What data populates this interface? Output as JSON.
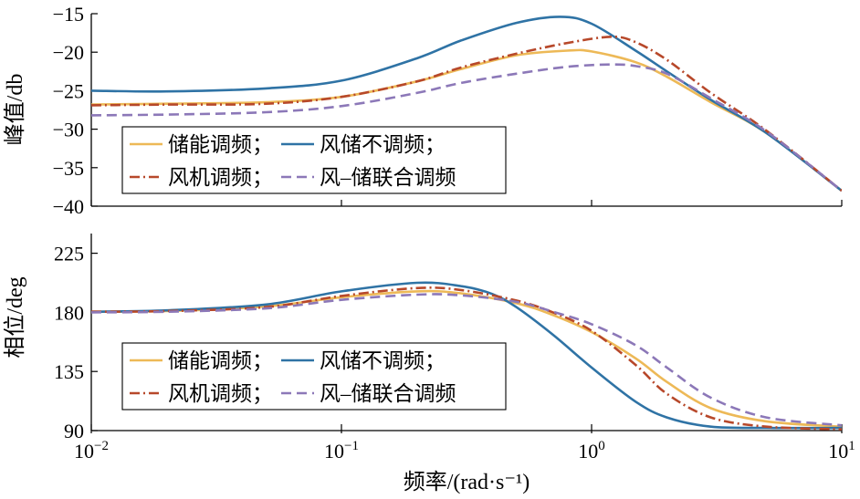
{
  "chart_data": [
    {
      "type": "line",
      "ylabel": "峰值/db",
      "xscale": "log",
      "xlim": [
        0.01,
        10
      ],
      "ylim": [
        -40,
        -15
      ],
      "yticks": [
        "−15",
        "−20",
        "−25",
        "−30",
        "−35",
        "−40"
      ],
      "yticks_values": [
        -15,
        -20,
        -25,
        -30,
        -35,
        -40
      ],
      "grid": false,
      "legend": {
        "placement": "left",
        "rows": [
          [
            "储能调频；",
            "风储不调频；"
          ],
          [
            "风机调频；",
            "风–储联合调频"
          ]
        ]
      },
      "series": [
        {
          "name": "储能调频",
          "color": "#EDB957",
          "style": "solid",
          "x": [
            0.01,
            0.02,
            0.05,
            0.1,
            0.2,
            0.3,
            0.5,
            0.8,
            1.0,
            1.5,
            2,
            3,
            5,
            10
          ],
          "y": [
            -26.8,
            -26.7,
            -26.5,
            -25.8,
            -23.8,
            -22.2,
            -20.4,
            -19.8,
            -19.9,
            -21.3,
            -23.2,
            -26.5,
            -30.5,
            -38.0
          ]
        },
        {
          "name": "风储不调频",
          "color": "#2F73A5",
          "style": "solid",
          "x": [
            0.01,
            0.02,
            0.05,
            0.1,
            0.2,
            0.3,
            0.5,
            0.75,
            1.0,
            1.5,
            2,
            3,
            5,
            10
          ],
          "y": [
            -25.0,
            -25.1,
            -24.7,
            -23.7,
            -20.8,
            -18.5,
            -16.2,
            -15.4,
            -16.3,
            -19.8,
            -22.5,
            -26.2,
            -30.5,
            -38.0
          ]
        },
        {
          "name": "风机调频",
          "color": "#B7482A",
          "style": "dashdot",
          "x": [
            0.01,
            0.02,
            0.05,
            0.1,
            0.2,
            0.3,
            0.5,
            0.8,
            1.2,
            1.5,
            2,
            3,
            5,
            10
          ],
          "y": [
            -26.9,
            -26.8,
            -26.7,
            -25.8,
            -23.8,
            -22.0,
            -20.2,
            -18.8,
            -18.0,
            -18.7,
            -21.0,
            -25.3,
            -30.2,
            -38.0
          ]
        },
        {
          "name": "风–储联合调频",
          "color": "#8C78B8",
          "style": "dashed",
          "x": [
            0.01,
            0.02,
            0.05,
            0.1,
            0.2,
            0.3,
            0.5,
            0.8,
            1.2,
            1.5,
            2,
            3,
            5,
            10
          ],
          "y": [
            -28.2,
            -28.1,
            -27.8,
            -27.0,
            -25.3,
            -24.0,
            -22.8,
            -21.9,
            -21.6,
            -21.8,
            -22.8,
            -26.0,
            -30.3,
            -38.0
          ]
        }
      ]
    },
    {
      "type": "line",
      "ylabel": "相位/deg",
      "xlabel": "频率/(rad·s⁻¹)",
      "xscale": "log",
      "xlim": [
        0.01,
        10
      ],
      "ylim": [
        90,
        240
      ],
      "xticks": [
        {
          "base": "10",
          "exp": "−2"
        },
        {
          "base": "10",
          "exp": "−1"
        },
        {
          "base": "10",
          "exp": "0"
        },
        {
          "base": "10",
          "exp": "1"
        }
      ],
      "xticks_values": [
        0.01,
        0.1,
        1,
        10
      ],
      "yticks": [
        "225",
        "180",
        "135",
        "90"
      ],
      "yticks_values": [
        225,
        180,
        135,
        90
      ],
      "grid": false,
      "legend": {
        "placement": "bottom-left",
        "rows": [
          [
            "储能调频；",
            "风储不调频；"
          ],
          [
            "风机调频；",
            "风–储联合调频"
          ]
        ]
      },
      "series": [
        {
          "name": "储能调频",
          "color": "#EDB957",
          "style": "solid",
          "x": [
            0.01,
            0.02,
            0.05,
            0.1,
            0.2,
            0.3,
            0.5,
            0.7,
            1.0,
            1.5,
            2,
            3,
            5,
            10
          ],
          "y": [
            180.5,
            181.0,
            184.5,
            191.5,
            196.0,
            194.5,
            187.0,
            178.0,
            165.0,
            145.0,
            127.0,
            107.0,
            97.0,
            93.0
          ]
        },
        {
          "name": "风储不调频",
          "color": "#2F73A5",
          "style": "solid",
          "x": [
            0.01,
            0.02,
            0.05,
            0.1,
            0.2,
            0.3,
            0.4,
            0.5,
            0.7,
            1.0,
            1.5,
            2,
            3,
            5,
            10
          ],
          "y": [
            180.5,
            181.5,
            186.0,
            196.0,
            202.5,
            200.0,
            194.0,
            184.0,
            163.0,
            138.0,
            112.0,
            100.0,
            93.0,
            92.0,
            92.0
          ]
        },
        {
          "name": "风机调频",
          "color": "#B7482A",
          "style": "dashdot",
          "x": [
            0.01,
            0.02,
            0.05,
            0.1,
            0.2,
            0.3,
            0.5,
            0.7,
            1.0,
            1.5,
            2,
            3,
            5,
            10
          ],
          "y": [
            180.5,
            181.0,
            184.0,
            192.5,
            198.5,
            197.0,
            189.0,
            180.0,
            166.0,
            140.0,
            118.0,
            100.0,
            93.0,
            91.0
          ]
        },
        {
          "name": "风–储联合调频",
          "color": "#8C78B8",
          "style": "dashed",
          "x": [
            0.01,
            0.02,
            0.05,
            0.1,
            0.2,
            0.3,
            0.5,
            0.7,
            1.0,
            1.5,
            2,
            3,
            5,
            10
          ],
          "y": [
            180.0,
            180.5,
            183.0,
            189.5,
            193.5,
            193.0,
            188.0,
            180.5,
            171.0,
            155.0,
            138.0,
            115.0,
            100.0,
            94.0
          ]
        }
      ]
    }
  ]
}
